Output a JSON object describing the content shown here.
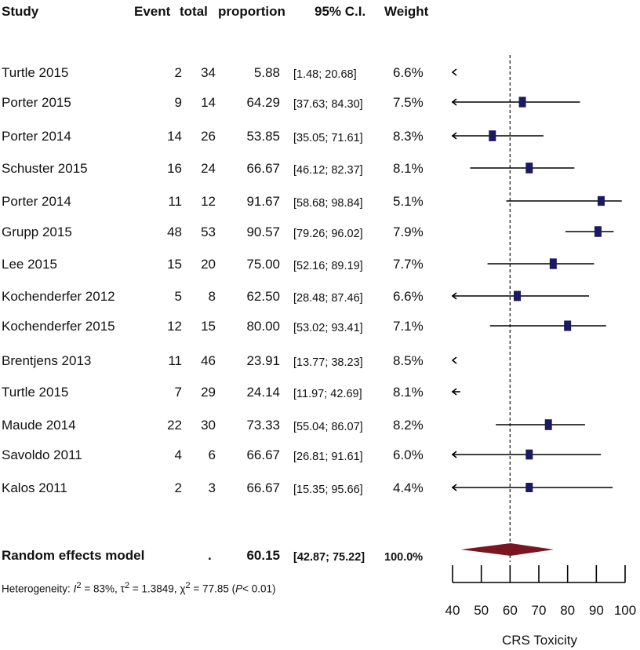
{
  "header": {
    "study": "Study",
    "event": "Event",
    "total": "total",
    "proportion": "proportion",
    "ci": "95% C.I.",
    "weight": "Weight"
  },
  "chart_data": {
    "type": "forest",
    "xlabel": "CRS Toxicity",
    "xlim": [
      40,
      100
    ],
    "ticks": [
      40,
      50,
      60,
      70,
      80,
      90,
      100
    ],
    "reference_line": 60,
    "rows": [
      {
        "study": "Turtle 2015",
        "event": "2",
        "total": "34",
        "proportion": "5.88",
        "ci": "[1.48; 20.68]",
        "weight": "6.6%",
        "est": 5.88,
        "lo": 1.48,
        "hi": 20.68
      },
      {
        "study": "Porter 2015",
        "event": "9",
        "total": "14",
        "proportion": "64.29",
        "ci": "[37.63; 84.30]",
        "weight": "7.5%",
        "est": 64.29,
        "lo": 37.63,
        "hi": 84.3
      },
      {
        "study": "Porter 2014",
        "event": "14",
        "total": "26",
        "proportion": "53.85",
        "ci": "[35.05; 71.61]",
        "weight": "8.3%",
        "est": 53.85,
        "lo": 35.05,
        "hi": 71.61
      },
      {
        "study": "Schuster 2015",
        "event": "16",
        "total": "24",
        "proportion": "66.67",
        "ci": "[46.12; 82.37]",
        "weight": "8.1%",
        "est": 66.67,
        "lo": 46.12,
        "hi": 82.37
      },
      {
        "study": "Porter 2014",
        "event": "11",
        "total": "12",
        "proportion": "91.67",
        "ci": "[58.68; 98.84]",
        "weight": "5.1%",
        "est": 91.67,
        "lo": 58.68,
        "hi": 98.84
      },
      {
        "study": "Grupp 2015",
        "event": "48",
        "total": "53",
        "proportion": "90.57",
        "ci": "[79.26; 96.02]",
        "weight": "7.9%",
        "est": 90.57,
        "lo": 79.26,
        "hi": 96.02
      },
      {
        "study": "Lee 2015",
        "event": "15",
        "total": "20",
        "proportion": "75.00",
        "ci": "[52.16; 89.19]",
        "weight": "7.7%",
        "est": 75.0,
        "lo": 52.16,
        "hi": 89.19
      },
      {
        "study": "Kochenderfer 2012",
        "event": "5",
        "total": "8",
        "proportion": "62.50",
        "ci": "[28.48; 87.46]",
        "weight": "6.6%",
        "est": 62.5,
        "lo": 28.48,
        "hi": 87.46
      },
      {
        "study": "Kochenderfer 2015",
        "event": "12",
        "total": "15",
        "proportion": "80.00",
        "ci": "[53.02; 93.41]",
        "weight": "7.1%",
        "est": 80.0,
        "lo": 53.02,
        "hi": 93.41
      },
      {
        "study": "Brentjens 2013",
        "event": "11",
        "total": "46",
        "proportion": "23.91",
        "ci": "[13.77; 38.23]",
        "weight": "8.5%",
        "est": 23.91,
        "lo": 13.77,
        "hi": 38.23
      },
      {
        "study": "Turtle 2015",
        "event": "7",
        "total": "29",
        "proportion": "24.14",
        "ci": "[11.97; 42.69]",
        "weight": "8.1%",
        "est": 24.14,
        "lo": 11.97,
        "hi": 42.69
      },
      {
        "study": "Maude 2014",
        "event": "22",
        "total": "30",
        "proportion": "73.33",
        "ci": "[55.04; 86.07]",
        "weight": "8.2%",
        "est": 73.33,
        "lo": 55.04,
        "hi": 86.07
      },
      {
        "study": "Savoldo 2011",
        "event": "4",
        "total": "6",
        "proportion": "66.67",
        "ci": "[26.81; 91.61]",
        "weight": "6.0%",
        "est": 66.67,
        "lo": 26.81,
        "hi": 91.61
      },
      {
        "study": "Kalos 2011",
        "event": "2",
        "total": "3",
        "proportion": "66.67",
        "ci": "[15.35; 95.66]",
        "weight": "4.4%",
        "est": 66.67,
        "lo": 15.35,
        "hi": 95.66
      }
    ],
    "summary": {
      "label": "Random effects model",
      "event": ".",
      "proportion": "60.15",
      "ci": "[42.87; 75.22]",
      "weight": "100.0%",
      "est": 60.15,
      "lo": 42.87,
      "hi": 75.22
    },
    "colors": {
      "marker": "#1a1a5e",
      "diamond": "#7a1522",
      "line": "#000000"
    }
  },
  "heterogeneity": {
    "prefix": "Heterogeneity: ",
    "i2_label": "I",
    "i2_value": " = 83%, ",
    "tau_label": "τ",
    "tau_value": " = 1.3849, ",
    "chi_label": "χ",
    "chi_value": " = 77.85 (",
    "p_label": "P",
    "p_value": "< 0.01)",
    "sup": "2"
  }
}
